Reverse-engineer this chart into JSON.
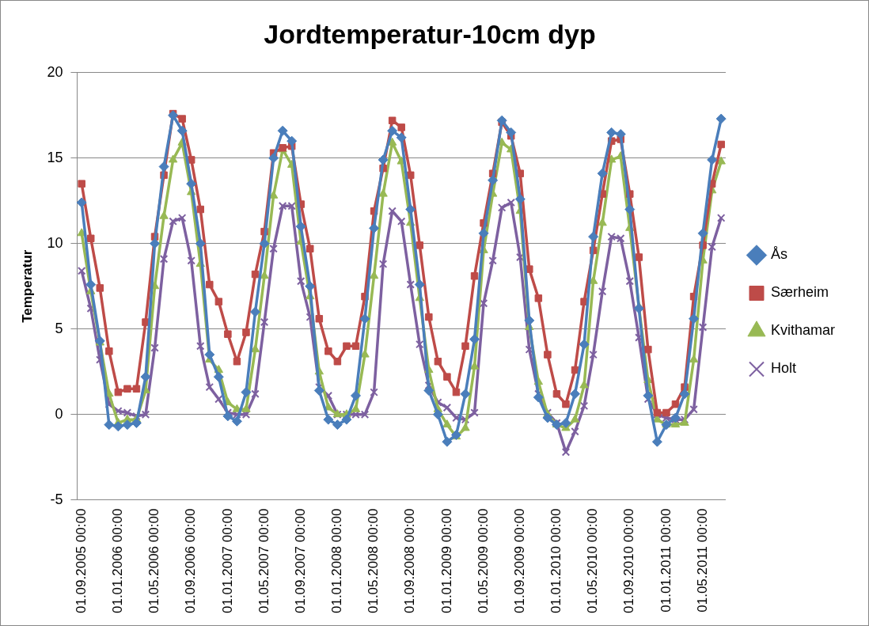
{
  "chart_data": {
    "type": "line",
    "title": "Jordtemperatur-10cm dyp",
    "ylabel": "Temperatur",
    "categories": [
      "01.09.2005 00:00",
      null,
      null,
      null,
      "01.01.2006 00:00",
      null,
      null,
      null,
      "01.05.2006 00:00",
      null,
      null,
      null,
      "01.09.2006 00:00",
      null,
      null,
      null,
      "01.01.2007 00:00",
      null,
      null,
      null,
      "01.05.2007 00:00",
      null,
      null,
      null,
      "01.09.2007 00:00",
      null,
      null,
      null,
      "01.01.2008 00:00",
      null,
      null,
      null,
      "01.05.2008 00:00",
      null,
      null,
      null,
      "01.09.2008 00:00",
      null,
      null,
      null,
      "01.01.2009 00:00",
      null,
      null,
      null,
      "01.05.2009 00:00",
      null,
      null,
      null,
      "01.09.2009 00:00",
      null,
      null,
      null,
      "01.01.2010 00:00",
      null,
      null,
      null,
      "01.05.2010 00:00",
      null,
      null,
      null,
      "01.09.2010 00:00",
      null,
      null,
      null,
      "01.01.2011 00:00",
      null,
      null,
      null,
      "01.05.2011 00:00",
      null,
      null
    ],
    "series": [
      {
        "name": "Ås",
        "color": "#4a7ebb",
        "marker": "diamond",
        "values": [
          12.4,
          7.6,
          4.3,
          -0.6,
          -0.7,
          -0.6,
          -0.5,
          2.2,
          10.0,
          14.5,
          17.5,
          16.6,
          13.5,
          10.0,
          3.5,
          2.2,
          -0.1,
          -0.4,
          1.3,
          6.0,
          10.0,
          15.0,
          16.6,
          16.0,
          11.0,
          7.5,
          1.4,
          -0.3,
          -0.6,
          -0.3,
          1.1,
          5.6,
          10.9,
          14.9,
          16.6,
          16.2,
          12.0,
          7.6,
          1.4,
          0.0,
          -1.6,
          -1.2,
          1.2,
          4.4,
          10.6,
          13.7,
          17.2,
          16.5,
          12.6,
          5.5,
          1.0,
          -0.2,
          -0.6,
          -0.5,
          1.2,
          4.1,
          10.4,
          14.1,
          16.5,
          16.4,
          12.0,
          6.2,
          1.1,
          -1.6,
          -0.6,
          -0.2,
          1.2,
          5.6,
          10.6,
          14.9,
          17.3
        ]
      },
      {
        "name": "Særheim",
        "color": "#be4b48",
        "marker": "square",
        "values": [
          13.5,
          10.3,
          7.4,
          3.7,
          1.3,
          1.5,
          1.5,
          5.4,
          10.4,
          14.0,
          17.6,
          17.3,
          14.9,
          12.0,
          7.6,
          6.6,
          4.7,
          3.1,
          4.8,
          8.2,
          10.7,
          15.3,
          15.6,
          15.7,
          12.3,
          9.7,
          5.6,
          3.7,
          3.1,
          4.0,
          4.0,
          6.9,
          11.9,
          14.4,
          17.2,
          16.8,
          14.0,
          9.9,
          5.7,
          3.1,
          2.2,
          1.3,
          4.0,
          8.1,
          11.2,
          14.1,
          17.1,
          16.3,
          14.1,
          8.5,
          6.8,
          3.5,
          1.2,
          0.6,
          2.6,
          6.6,
          9.6,
          12.9,
          16.0,
          16.1,
          12.9,
          9.2,
          3.8,
          0.1,
          0.1,
          0.6,
          1.6,
          6.9,
          9.9,
          13.5,
          15.8
        ]
      },
      {
        "name": "Kvithamar",
        "color": "#98b954",
        "marker": "triangle",
        "values": [
          10.6,
          7.2,
          4.2,
          1.2,
          -0.5,
          -0.3,
          -0.3,
          1.4,
          7.5,
          11.6,
          14.9,
          15.9,
          13.0,
          8.8,
          3.2,
          2.6,
          0.7,
          0.3,
          0.3,
          3.8,
          8.1,
          12.8,
          15.5,
          14.6,
          10.1,
          6.9,
          2.5,
          0.4,
          0.0,
          0.0,
          0.3,
          3.5,
          8.1,
          12.9,
          15.9,
          14.8,
          11.2,
          6.8,
          2.6,
          0.3,
          -0.6,
          -1.3,
          -0.8,
          2.8,
          9.6,
          12.9,
          15.9,
          15.5,
          11.9,
          5.1,
          1.9,
          0.0,
          -0.6,
          -0.8,
          -0.3,
          1.7,
          7.8,
          11.2,
          14.9,
          15.1,
          10.9,
          6.3,
          2.0,
          -0.3,
          -0.6,
          -0.6,
          -0.5,
          3.2,
          9.0,
          13.1,
          14.8
        ]
      },
      {
        "name": "Holt",
        "color": "#7d60a0",
        "marker": "cross",
        "values": [
          8.4,
          6.2,
          3.2,
          0.6,
          0.2,
          0.1,
          -0.1,
          0.0,
          3.9,
          9.1,
          11.3,
          11.5,
          9.0,
          4.0,
          1.6,
          0.9,
          0.1,
          0.0,
          0.0,
          1.2,
          5.4,
          9.7,
          12.2,
          12.2,
          7.8,
          5.7,
          1.6,
          1.1,
          0.0,
          0.0,
          0.0,
          0.0,
          1.3,
          8.8,
          11.9,
          11.3,
          7.6,
          4.1,
          1.7,
          0.7,
          0.4,
          -0.2,
          -0.3,
          0.1,
          6.5,
          9.0,
          12.1,
          12.4,
          9.2,
          3.8,
          1.2,
          0.1,
          -0.5,
          -2.2,
          -1.0,
          0.5,
          3.5,
          7.2,
          10.4,
          10.3,
          7.8,
          4.5,
          0.9,
          0.0,
          -0.2,
          -0.3,
          -0.3,
          0.3,
          5.1,
          9.8,
          11.5
        ]
      }
    ],
    "ylim": [
      -5,
      20
    ],
    "yticks": [
      -5,
      0,
      5,
      10,
      15,
      20
    ],
    "grid": "y",
    "legend": "right",
    "line_style": "solid"
  }
}
